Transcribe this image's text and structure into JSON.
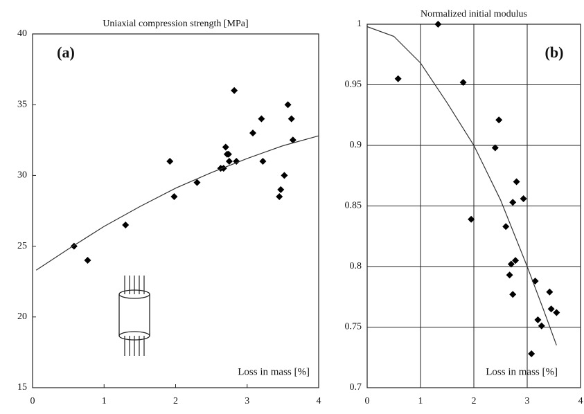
{
  "chart_data": [
    {
      "type": "scatter",
      "title": "Uniaxial compression strength [MPa]",
      "panel_label": "(a)",
      "xlabel": "Loss in mass [%]",
      "xlim": [
        0,
        4
      ],
      "xticks": [
        0,
        1,
        2,
        3,
        4
      ],
      "ylim": [
        15,
        40
      ],
      "yticks": [
        15,
        20,
        25,
        30,
        35,
        40
      ],
      "grid": false,
      "series": [
        {
          "mode": "markers",
          "color": "#000000",
          "x": [
            0.58,
            0.77,
            1.3,
            1.92,
            1.98,
            2.3,
            2.63,
            2.67,
            2.7,
            2.72,
            2.75,
            2.74,
            2.82,
            2.85,
            3.08,
            3.2,
            3.22,
            3.45,
            3.47,
            3.52,
            3.57,
            3.62,
            3.64
          ],
          "values": [
            25,
            24,
            26.5,
            31,
            28.5,
            29.5,
            30.5,
            30.5,
            32,
            31.5,
            31,
            31.5,
            36,
            31,
            33,
            34,
            31,
            28.5,
            29,
            30,
            35,
            34,
            32.5
          ]
        },
        {
          "mode": "line",
          "color": "#333333",
          "x": [
            0.05,
            0.5,
            1,
            1.5,
            2,
            2.5,
            3,
            3.5,
            4
          ],
          "values": [
            23.3,
            24.8,
            26.4,
            27.8,
            29.1,
            30.2,
            31.2,
            32.1,
            32.8
          ]
        }
      ]
    },
    {
      "type": "scatter",
      "title": "Normalized initial modulus",
      "panel_label": "(b)",
      "xlabel": "Loss in mass [%]",
      "xlim": [
        0,
        4
      ],
      "xticks": [
        0,
        1,
        2,
        3,
        4
      ],
      "ylim": [
        0.7,
        1
      ],
      "yticks": [
        0.7,
        0.75,
        0.8,
        0.85,
        0.9,
        0.95,
        1
      ],
      "grid": true,
      "series": [
        {
          "mode": "markers",
          "color": "#000000",
          "x": [
            0.58,
            1.33,
            1.8,
            2.47,
            2.4,
            1.95,
            2.8,
            2.93,
            2.73,
            2.6,
            2.78,
            2.7,
            2.67,
            2.73,
            3.15,
            3.42,
            3.45,
            3.55,
            3.2,
            3.27,
            3.08
          ],
          "values": [
            0.955,
            1.0,
            0.952,
            0.921,
            0.898,
            0.839,
            0.87,
            0.856,
            0.853,
            0.833,
            0.805,
            0.802,
            0.793,
            0.777,
            0.788,
            0.779,
            0.765,
            0.762,
            0.756,
            0.751,
            0.728
          ]
        },
        {
          "mode": "line",
          "color": "#333333",
          "x": [
            0,
            0.5,
            1,
            1.5,
            2,
            2.5,
            3,
            3.3,
            3.55
          ],
          "values": [
            0.998,
            0.99,
            0.968,
            0.935,
            0.9,
            0.855,
            0.8,
            0.765,
            0.735
          ]
        }
      ]
    }
  ]
}
